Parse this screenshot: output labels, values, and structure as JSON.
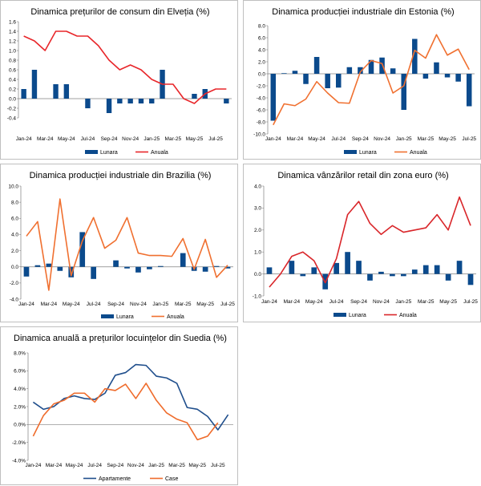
{
  "chart_data": [
    {
      "type": "bar",
      "title": "Dinamica prețurilor de consum din Elveția (%)",
      "categories": [
        "Jan-24",
        "Feb-24",
        "Mar-24",
        "Apr-24",
        "May-24",
        "Jun-24",
        "Jul-24",
        "Aug-24",
        "Sep-24",
        "Oct-24",
        "Nov-24",
        "Dec-24",
        "Jan-25",
        "Feb-25",
        "Mar-25",
        "Apr-25",
        "May-25",
        "Jun-25",
        "Jul-25",
        "Aug-25"
      ],
      "xtick_labels": [
        "Jan-24",
        "Mar-24",
        "May-24",
        "Jul-24",
        "Sep-24",
        "Nov-24",
        "Jan-25",
        "Mar-25",
        "May-25",
        "Jul-25"
      ],
      "ylim": [
        -0.4,
        1.6
      ],
      "ytick_labels": [
        "-0.4",
        "-0.2",
        "0.0",
        "0.2",
        "0.4",
        "0.6",
        "0.8",
        "1.0",
        "1.2",
        "1.4",
        "1.6"
      ],
      "series": [
        {
          "name": "Lunara",
          "kind": "bar",
          "color": "#0b4a8c",
          "values": [
            0.2,
            0.6,
            0.0,
            0.3,
            0.3,
            0.0,
            -0.2,
            0.0,
            -0.3,
            -0.1,
            -0.1,
            -0.1,
            -0.1,
            0.6,
            0.0,
            0.0,
            0.1,
            0.2,
            0.0,
            -0.1
          ]
        },
        {
          "name": "Anuala",
          "kind": "line",
          "color": "#e8262a",
          "values": [
            1.3,
            1.2,
            1.0,
            1.4,
            1.4,
            1.3,
            1.3,
            1.1,
            0.8,
            0.6,
            0.7,
            0.6,
            0.4,
            0.3,
            0.3,
            0.0,
            -0.1,
            0.1,
            0.2,
            0.2
          ]
        }
      ]
    },
    {
      "type": "bar",
      "title": "Dinamica producției industriale din Estonia (%)",
      "categories": [
        "Jan-24",
        "Feb-24",
        "Mar-24",
        "Apr-24",
        "May-24",
        "Jun-24",
        "Jul-24",
        "Aug-24",
        "Sep-24",
        "Oct-24",
        "Nov-24",
        "Dec-24",
        "Jan-25",
        "Feb-25",
        "Mar-25",
        "Apr-25",
        "May-25",
        "Jun-25",
        "Jul-25"
      ],
      "xtick_labels": [
        "Jan-24",
        "Mar-24",
        "May-24",
        "Jul-24",
        "Sep-24",
        "Nov-24",
        "Jan-25",
        "Mar-25",
        "May-25",
        "Jul-25"
      ],
      "ylim": [
        -10,
        8
      ],
      "ytick_labels": [
        "-10.0",
        "-8.0",
        "-6.0",
        "-4.0",
        "-2.0",
        "0.0",
        "2.0",
        "4.0",
        "6.0",
        "8.0"
      ],
      "series": [
        {
          "name": "Lunara",
          "kind": "bar",
          "color": "#0b4a8c",
          "values": [
            -7.8,
            0.1,
            0.5,
            -1.7,
            2.8,
            -2.4,
            -2.3,
            1.1,
            1.1,
            2.3,
            2.7,
            0.9,
            -6.0,
            5.8,
            -0.8,
            1.9,
            -0.6,
            -1.3,
            -5.4
          ]
        },
        {
          "name": "Anuala",
          "kind": "line",
          "color": "#f07030",
          "values": [
            -8.5,
            -5.0,
            -5.3,
            -4.2,
            -1.3,
            -3.2,
            -4.8,
            -4.9,
            0.3,
            2.2,
            1.7,
            -3.2,
            -2.0,
            3.9,
            2.6,
            6.5,
            3.1,
            4.1,
            0.7
          ]
        }
      ]
    },
    {
      "type": "bar",
      "title": "Dinamica producției industriale din Brazilia (%)",
      "categories": [
        "Jan-24",
        "Feb-24",
        "Mar-24",
        "Apr-24",
        "May-24",
        "Jun-24",
        "Jul-24",
        "Aug-24",
        "Sep-24",
        "Oct-24",
        "Nov-24",
        "Dec-24",
        "Jan-25",
        "Feb-25",
        "Mar-25",
        "Apr-25",
        "May-25",
        "Jun-25",
        "Jul-25"
      ],
      "xtick_labels": [
        "Jan-24",
        "Mar-24",
        "May-24",
        "Jul-24",
        "Sep-24",
        "Nov-24",
        "Jan-25",
        "Mar-25",
        "May-25",
        "Jul-25"
      ],
      "ylim": [
        -4,
        10
      ],
      "ytick_labels": [
        "-4.0",
        "-2.0",
        "0.0",
        "2.0",
        "4.0",
        "6.0",
        "8.0",
        "10.0"
      ],
      "series": [
        {
          "name": "Lunara",
          "kind": "bar",
          "color": "#0b4a8c",
          "values": [
            -1.2,
            0.2,
            0.4,
            -0.5,
            -1.3,
            4.3,
            -1.5,
            0.0,
            0.8,
            -0.2,
            -0.7,
            -0.3,
            0.1,
            0.0,
            1.7,
            -0.5,
            -0.6,
            0.1,
            -0.2
          ]
        },
        {
          "name": "Anuala",
          "kind": "line",
          "color": "#f07030",
          "values": [
            3.8,
            5.6,
            -2.9,
            8.4,
            -1.1,
            3.2,
            6.1,
            2.3,
            3.3,
            6.1,
            1.7,
            1.4,
            1.4,
            1.3,
            3.5,
            -0.3,
            3.4,
            -1.3,
            0.2
          ]
        }
      ]
    },
    {
      "type": "bar",
      "title": "Dinamica vânzărilor retail din zona euro (%)",
      "categories": [
        "Jan-24",
        "Feb-24",
        "Mar-24",
        "Apr-24",
        "May-24",
        "Jun-24",
        "Jul-24",
        "Aug-24",
        "Sep-24",
        "Oct-24",
        "Nov-24",
        "Dec-24",
        "Jan-25",
        "Feb-25",
        "Mar-25",
        "Apr-25",
        "May-25",
        "Jun-25",
        "Jul-25"
      ],
      "xtick_labels": [
        "Jan-24",
        "Mar-24",
        "May-24",
        "Jul-24",
        "Sep-24",
        "Nov-24",
        "Jan-25",
        "Mar-25",
        "May-25",
        "Jul-25"
      ],
      "ylim": [
        -1,
        4
      ],
      "ytick_labels": [
        "-1.0",
        "0.0",
        "1.0",
        "2.0",
        "3.0",
        "4.0"
      ],
      "series": [
        {
          "name": "Lunara",
          "kind": "bar",
          "color": "#0b4a8c",
          "values": [
            0.3,
            0.0,
            0.6,
            -0.1,
            0.3,
            -0.7,
            0.5,
            1.0,
            0.6,
            -0.3,
            0.1,
            -0.1,
            -0.1,
            0.2,
            0.4,
            0.4,
            -0.3,
            0.6,
            -0.5
          ]
        },
        {
          "name": "Anuala",
          "kind": "line",
          "color": "#d9262a",
          "values": [
            -0.6,
            0.0,
            0.8,
            1.0,
            0.6,
            -0.4,
            0.7,
            2.7,
            3.3,
            2.3,
            1.8,
            2.2,
            1.9,
            2.0,
            2.1,
            2.7,
            2.0,
            3.5,
            2.2
          ]
        }
      ]
    },
    {
      "type": "line",
      "title": "Dinamica anuală a prețurilor locuințelor din Suedia (%)",
      "categories": [
        "Jan-24",
        "Feb-24",
        "Mar-24",
        "Apr-24",
        "May-24",
        "Jun-24",
        "Jul-24",
        "Aug-24",
        "Sep-24",
        "Oct-24",
        "Nov-24",
        "Dec-24",
        "Jan-25",
        "Feb-25",
        "Mar-25",
        "Apr-25",
        "May-25",
        "Jun-25",
        "Jul-25",
        "Aug-25"
      ],
      "xtick_labels": [
        "Jan-24",
        "Mar-24",
        "May-24",
        "Jul-24",
        "Sep-24",
        "Nov-24",
        "Jan-25",
        "Mar-25",
        "May-25",
        "Jul-25"
      ],
      "ylim": [
        -4,
        8
      ],
      "ytick_labels": [
        "-4.0%",
        "-2.0%",
        "0.0%",
        "2.0%",
        "4.0%",
        "6.0%",
        "8.0%"
      ],
      "series": [
        {
          "name": "Apartamente",
          "kind": "line",
          "color": "#1f4e8c",
          "values": [
            2.5,
            1.7,
            2.0,
            2.9,
            3.2,
            2.9,
            2.8,
            3.5,
            5.5,
            5.8,
            6.7,
            6.6,
            5.4,
            5.2,
            4.6,
            1.9,
            1.7,
            0.9,
            -0.6,
            1.1
          ]
        },
        {
          "name": "Case",
          "kind": "line",
          "color": "#ef6c2c",
          "values": [
            -1.3,
            1.0,
            2.3,
            2.7,
            3.5,
            3.5,
            2.5,
            4.0,
            3.8,
            4.5,
            2.9,
            4.6,
            2.7,
            1.3,
            0.6,
            0.2,
            -1.7,
            -1.3,
            0.2,
            null
          ]
        }
      ]
    }
  ]
}
